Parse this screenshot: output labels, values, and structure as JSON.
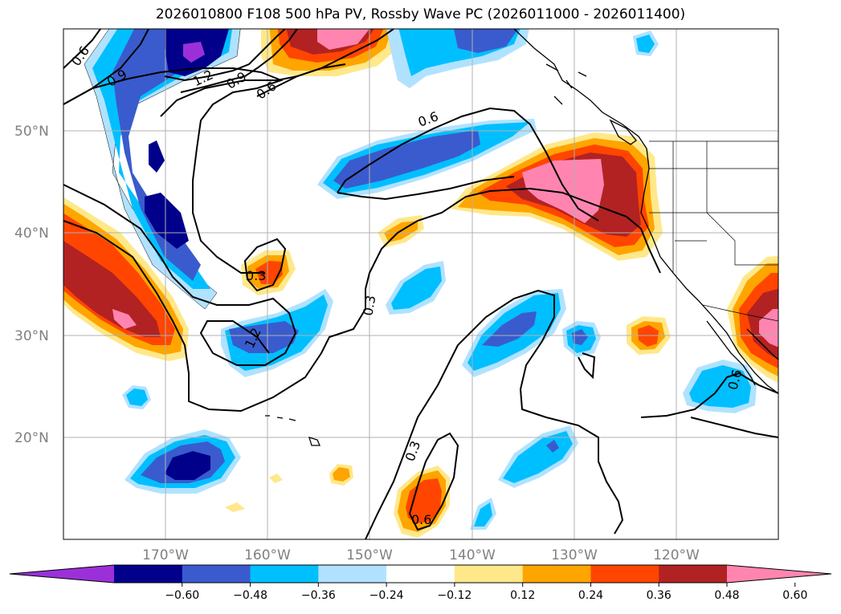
{
  "title": "2026010800 F108 500 hPa PV, Rossby Wave PC (2026011000 - 2026011400)",
  "lat_labels": [
    "50°N",
    "40°N",
    "30°N",
    "20°N"
  ],
  "lon_labels": [
    "170°W",
    "160°W",
    "150°W",
    "140°W",
    "130°W",
    "120°W"
  ],
  "colorbar": {
    "colors": [
      "#9b30d9",
      "#00008b",
      "#3a5bcd",
      "#00bfff",
      "#b0e2ff",
      "#ffffff",
      "#ffe88a",
      "#ffa500",
      "#ff4500",
      "#b22222",
      "#ff85b0"
    ],
    "ticks": [
      "−0.60",
      "−0.48",
      "−0.36",
      "−0.24",
      "−0.12",
      "0.12",
      "0.24",
      "0.36",
      "0.48",
      "0.60"
    ]
  },
  "contour_labels": [
    "0.6",
    "0.9",
    "1.2",
    "0.9",
    "0.6",
    "0.6",
    "0.3",
    "0.3",
    "1.2",
    "0.3",
    "0.6",
    "0.6"
  ]
}
